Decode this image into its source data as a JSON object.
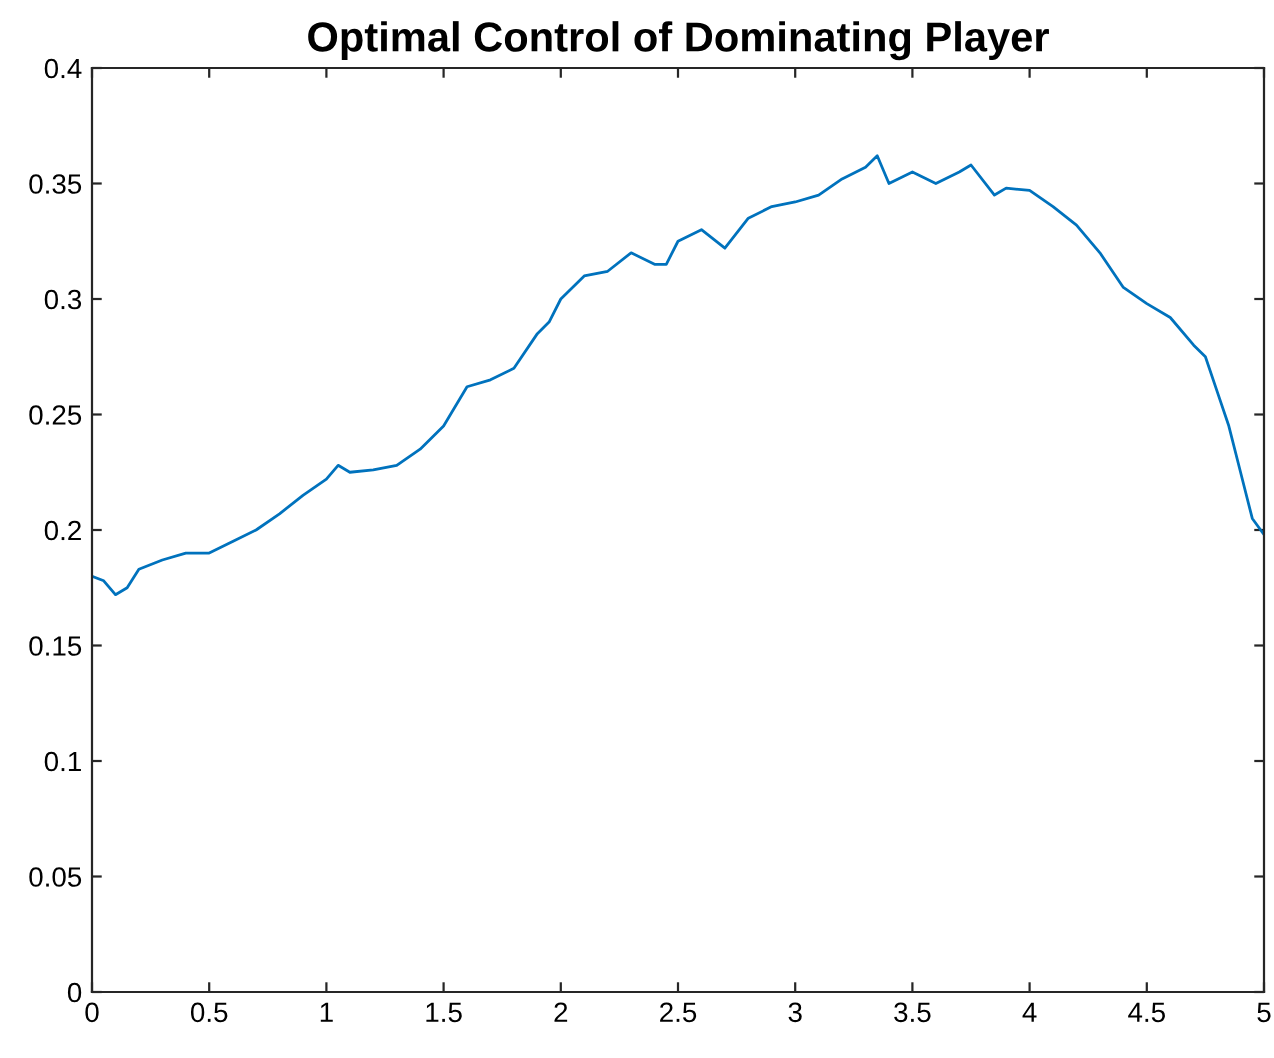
{
  "chart_data": {
    "type": "line",
    "title": "Optimal Control of Dominating Player",
    "x": [
      0,
      0.05,
      0.1,
      0.15,
      0.2,
      0.3,
      0.4,
      0.5,
      0.6,
      0.7,
      0.8,
      0.9,
      1.0,
      1.05,
      1.1,
      1.2,
      1.3,
      1.4,
      1.5,
      1.6,
      1.7,
      1.8,
      1.9,
      1.95,
      2.0,
      2.1,
      2.2,
      2.3,
      2.4,
      2.45,
      2.5,
      2.6,
      2.7,
      2.8,
      2.9,
      3.0,
      3.1,
      3.2,
      3.3,
      3.35,
      3.4,
      3.5,
      3.6,
      3.7,
      3.75,
      3.85,
      3.9,
      4.0,
      4.1,
      4.2,
      4.3,
      4.4,
      4.5,
      4.6,
      4.7,
      4.75,
      4.8,
      4.85,
      4.9,
      4.95,
      5.0
    ],
    "series": [
      {
        "color": "#0072bd",
        "values": [
          0.18,
          0.178,
          0.172,
          0.175,
          0.183,
          0.187,
          0.19,
          0.19,
          0.195,
          0.2,
          0.207,
          0.215,
          0.222,
          0.228,
          0.225,
          0.226,
          0.228,
          0.235,
          0.245,
          0.262,
          0.265,
          0.27,
          0.285,
          0.29,
          0.3,
          0.31,
          0.312,
          0.32,
          0.315,
          0.315,
          0.325,
          0.33,
          0.322,
          0.335,
          0.34,
          0.342,
          0.345,
          0.352,
          0.357,
          0.362,
          0.35,
          0.355,
          0.35,
          0.355,
          0.358,
          0.345,
          0.348,
          0.347,
          0.34,
          0.332,
          0.32,
          0.305,
          0.298,
          0.292,
          0.28,
          0.275,
          0.26,
          0.245,
          0.225,
          0.205,
          0.198
        ]
      }
    ],
    "xlim": [
      0,
      5
    ],
    "xticks": [
      0,
      0.5,
      1,
      1.5,
      2,
      2.5,
      3,
      3.5,
      4,
      4.5,
      5
    ],
    "ylim": [
      0,
      0.4
    ],
    "yticks": [
      0,
      0.05,
      0.1,
      0.15,
      0.2,
      0.25,
      0.3,
      0.35,
      0.4
    ],
    "grid": false,
    "legend": false,
    "marker": "none",
    "line_style": "solid"
  }
}
